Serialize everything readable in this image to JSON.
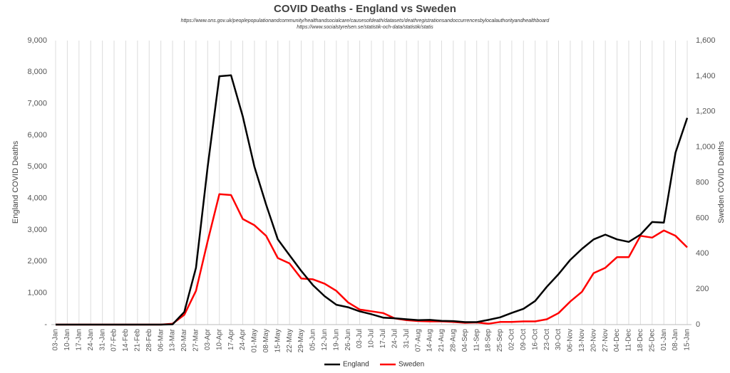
{
  "chart_data": {
    "type": "line",
    "title": "COVID Deaths - England vs Sweden",
    "subtitle": [
      "https://www.ons.gov.uk/peoplepopulationandcommunity/healthandsocialcare/causesofdeath/datasets/deathregistrationsandoccurrencesbylocalauthorityandhealthboard",
      "https://www.socialstyrelsen.se/statistik-och-data/statistik/statis"
    ],
    "y_label": "England COVID Deaths",
    "y2_label": "Sweden COVID Deaths",
    "categories": [
      "03-Jan",
      "10-Jan",
      "17-Jan",
      "24-Jan",
      "31-Jan",
      "07-Feb",
      "14-Feb",
      "21-Feb",
      "28-Feb",
      "06-Mar",
      "13-Mar",
      "20-Mar",
      "27-Mar",
      "03-Apr",
      "10-Apr",
      "17-Apr",
      "24-Apr",
      "01-May",
      "08-May",
      "15-May",
      "22-May",
      "29-May",
      "05-Jun",
      "12-Jun",
      "19-Jun",
      "26-Jun",
      "03-Jul",
      "10-Jul",
      "17-Jul",
      "24-Jul",
      "31-Jul",
      "07-Aug",
      "14-Aug",
      "21-Aug",
      "28-Aug",
      "04-Sep",
      "11-Sep",
      "18-Sep",
      "25-Sep",
      "02-Oct",
      "09-Oct",
      "16-Oct",
      "23-Oct",
      "30-Oct",
      "06-Nov",
      "13-Nov",
      "20-Nov",
      "27-Nov",
      "04-Dec",
      "11-Dec",
      "18-Dec",
      "25-Dec",
      "01-Jan",
      "08-Jan",
      "15-Jan"
    ],
    "series": [
      {
        "name": "England",
        "color": "#000000",
        "axis": "y",
        "values": [
          0,
          0,
          0,
          0,
          0,
          0,
          0,
          0,
          0,
          0,
          10,
          400,
          1800,
          5000,
          7870,
          7900,
          6600,
          5000,
          3800,
          2700,
          2200,
          1700,
          1250,
          900,
          630,
          550,
          420,
          330,
          220,
          200,
          170,
          140,
          150,
          120,
          110,
          80,
          80,
          150,
          230,
          370,
          500,
          750,
          1200,
          1600,
          2050,
          2400,
          2700,
          2850,
          2700,
          2620,
          2850,
          3250,
          3230,
          5450,
          6550
        ]
      },
      {
        "name": "Sweden",
        "color": "#ff0000",
        "axis": "y2",
        "values": [
          0,
          0,
          0,
          0,
          0,
          0,
          0,
          0,
          0,
          0,
          5,
          55,
          190,
          470,
          735,
          730,
          595,
          560,
          500,
          375,
          345,
          260,
          255,
          230,
          190,
          125,
          85,
          75,
          65,
          35,
          25,
          20,
          18,
          18,
          15,
          10,
          12,
          5,
          15,
          15,
          18,
          18,
          30,
          65,
          130,
          185,
          290,
          320,
          380,
          380,
          500,
          490,
          530,
          500,
          435
        ]
      }
    ],
    "ylim": [
      0,
      9000
    ],
    "yticks": [
      {
        "value": 0,
        "label": "-"
      },
      {
        "value": 1000,
        "label": "1,000"
      },
      {
        "value": 2000,
        "label": "2,000"
      },
      {
        "value": 3000,
        "label": "3,000"
      },
      {
        "value": 4000,
        "label": "4,000"
      },
      {
        "value": 5000,
        "label": "5,000"
      },
      {
        "value": 6000,
        "label": "6,000"
      },
      {
        "value": 7000,
        "label": "7,000"
      },
      {
        "value": 8000,
        "label": "8,000"
      },
      {
        "value": 9000,
        "label": "9,000"
      }
    ],
    "y2lim": [
      0,
      1600
    ],
    "y2ticks": [
      0,
      200,
      400,
      600,
      800,
      {
        "value": 1000,
        "label": "1,000"
      },
      {
        "value": 1200,
        "label": "1,200"
      },
      {
        "value": 1400,
        "label": "1,400"
      },
      {
        "value": 1600,
        "label": "1,600"
      }
    ],
    "grid": "x",
    "legend": "bottom"
  }
}
